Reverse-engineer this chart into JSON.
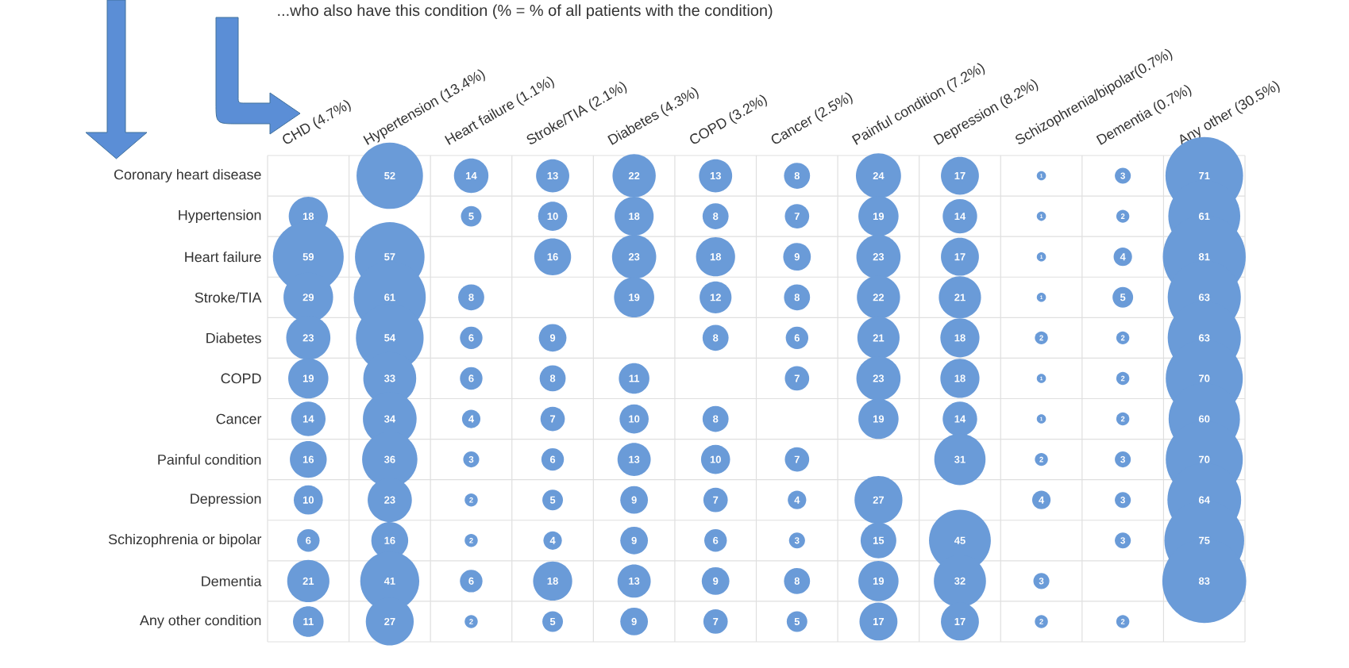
{
  "chart_data": {
    "type": "heatmap",
    "title": "...who also have this condition (% = % of all patients with the condition)",
    "categories": [
      "CHD (4.7%)",
      "Hypertension (13.4%)",
      "Heart failure (1.1%)",
      "Stroke/TIA (2.1%)",
      "Diabetes (4.3%)",
      "COPD (3.2%)",
      "Cancer (2.5%)",
      "Painful condition (7.2%)",
      "Depression (8.2%)",
      "Schizophrenia/bipolar(0.7%)",
      "Dementia (0.7%)",
      "Any other (30.5%)"
    ],
    "y_categories": [
      "Coronary heart disease",
      "Hypertension",
      "Heart failure",
      "Stroke/TIA",
      "Diabetes",
      "COPD",
      "Cancer",
      "Painful condition",
      "Depression",
      "Schizophrenia or bipolar",
      "Dementia",
      "Any other condition"
    ],
    "cells": [
      [
        null,
        52,
        14,
        13,
        22,
        13,
        8,
        24,
        17,
        1,
        3,
        71
      ],
      [
        18,
        null,
        5,
        10,
        18,
        8,
        7,
        19,
        14,
        1,
        2,
        61
      ],
      [
        59,
        57,
        null,
        16,
        23,
        18,
        9,
        23,
        17,
        1,
        4,
        81
      ],
      [
        29,
        61,
        8,
        null,
        19,
        12,
        8,
        22,
        21,
        1,
        5,
        63
      ],
      [
        23,
        54,
        6,
        9,
        null,
        8,
        6,
        21,
        18,
        2,
        2,
        63
      ],
      [
        19,
        33,
        6,
        8,
        11,
        null,
        7,
        23,
        18,
        1,
        2,
        70
      ],
      [
        14,
        34,
        4,
        7,
        10,
        8,
        null,
        19,
        14,
        1,
        2,
        60
      ],
      [
        16,
        36,
        3,
        6,
        13,
        10,
        7,
        null,
        31,
        2,
        3,
        70
      ],
      [
        10,
        23,
        2,
        5,
        9,
        7,
        4,
        27,
        null,
        4,
        3,
        64
      ],
      [
        6,
        16,
        2,
        4,
        9,
        6,
        3,
        15,
        45,
        null,
        3,
        75
      ],
      [
        21,
        41,
        6,
        18,
        13,
        9,
        8,
        19,
        32,
        3,
        null,
        83
      ],
      [
        11,
        27,
        2,
        5,
        9,
        7,
        5,
        17,
        17,
        2,
        2,
        null
      ]
    ],
    "color": "#6a9bd8",
    "data_labels": true,
    "grid": true
  }
}
